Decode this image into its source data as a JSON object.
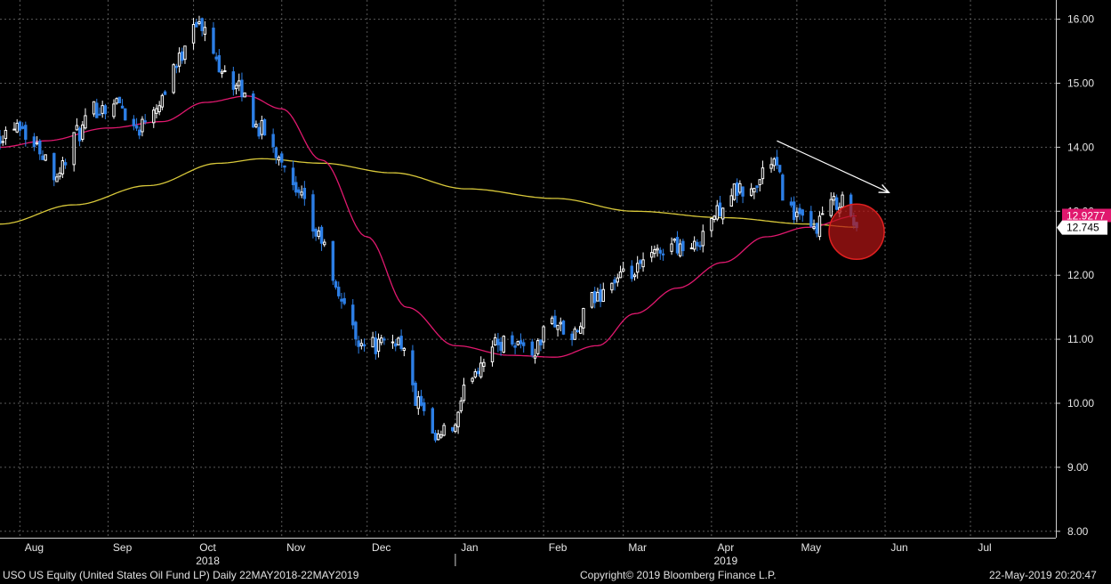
{
  "chart_data": {
    "type": "candlestick",
    "security": "USO US Equity",
    "x_range": [
      "2018-07-25",
      "2019-07-31"
    ],
    "ylim": [
      7.9,
      16.3
    ],
    "y_ticks": [
      "16.00",
      "15.00",
      "14.00",
      "13.00",
      "12.00",
      "11.00",
      "10.00",
      "9.00",
      "8.00"
    ],
    "month_labels": [
      {
        "label": "Aug",
        "date": "2018-08-06"
      },
      {
        "label": "Sep",
        "date": "2018-09-06"
      },
      {
        "label": "Oct",
        "date": "2018-10-06"
      },
      {
        "label": "Nov",
        "date": "2018-11-06"
      },
      {
        "label": "Dec",
        "date": "2018-12-06"
      },
      {
        "label": "Jan",
        "date": "2019-01-06"
      },
      {
        "label": "Feb",
        "date": "2019-02-06"
      },
      {
        "label": "Mar",
        "date": "2019-03-06"
      },
      {
        "label": "Apr",
        "date": "2019-04-06"
      },
      {
        "label": "May",
        "date": "2019-05-06"
      },
      {
        "label": "Jun",
        "date": "2019-06-06"
      },
      {
        "label": "Jul",
        "date": "2019-07-06"
      }
    ],
    "year_labels": [
      {
        "label": "2018",
        "date": "2018-10-06"
      },
      {
        "label": "2019",
        "date": "2019-04-06"
      }
    ],
    "price_anchors": [
      [
        "2018-07-25",
        14.2
      ],
      [
        "2018-07-31",
        14.4
      ],
      [
        "2018-08-07",
        14.0
      ],
      [
        "2018-08-14",
        13.6
      ],
      [
        "2018-08-21",
        14.2
      ],
      [
        "2018-08-28",
        14.6
      ],
      [
        "2018-09-04",
        14.7
      ],
      [
        "2018-09-11",
        14.3
      ],
      [
        "2018-09-18",
        14.7
      ],
      [
        "2018-09-25",
        15.3
      ],
      [
        "2018-10-01",
        16.0
      ],
      [
        "2018-10-05",
        15.8
      ],
      [
        "2018-10-10",
        15.3
      ],
      [
        "2018-10-17",
        14.9
      ],
      [
        "2018-10-24",
        14.3
      ],
      [
        "2018-10-31",
        13.9
      ],
      [
        "2018-11-07",
        13.2
      ],
      [
        "2018-11-14",
        12.6
      ],
      [
        "2018-11-21",
        11.7
      ],
      [
        "2018-11-28",
        11.0
      ],
      [
        "2018-12-05",
        10.9
      ],
      [
        "2018-12-12",
        11.0
      ],
      [
        "2018-12-19",
        10.0
      ],
      [
        "2018-12-24",
        9.4
      ],
      [
        "2018-12-31",
        9.6
      ],
      [
        "2019-01-07",
        10.5
      ],
      [
        "2019-01-14",
        10.9
      ],
      [
        "2019-01-21",
        11.0
      ],
      [
        "2019-01-28",
        10.8
      ],
      [
        "2019-02-04",
        11.3
      ],
      [
        "2019-02-11",
        11.0
      ],
      [
        "2019-02-18",
        11.6
      ],
      [
        "2019-02-25",
        11.9
      ],
      [
        "2019-03-04",
        12.0
      ],
      [
        "2019-03-11",
        12.3
      ],
      [
        "2019-03-18",
        12.5
      ],
      [
        "2019-03-25",
        12.4
      ],
      [
        "2019-04-01",
        12.9
      ],
      [
        "2019-04-08",
        13.3
      ],
      [
        "2019-04-15",
        13.3
      ],
      [
        "2019-04-22",
        13.8
      ],
      [
        "2019-04-29",
        13.0
      ],
      [
        "2019-05-06",
        12.7
      ],
      [
        "2019-05-13",
        13.1
      ],
      [
        "2019-05-17",
        13.2
      ],
      [
        "2019-05-22",
        12.745
      ]
    ],
    "ma_short": [
      [
        "2018-07-25",
        14.0
      ],
      [
        "2018-08-10",
        14.1
      ],
      [
        "2018-09-01",
        14.3
      ],
      [
        "2018-09-20",
        14.4
      ],
      [
        "2018-10-05",
        14.7
      ],
      [
        "2018-10-20",
        14.8
      ],
      [
        "2018-11-01",
        14.6
      ],
      [
        "2018-11-15",
        13.8
      ],
      [
        "2018-12-01",
        12.6
      ],
      [
        "2018-12-15",
        11.5
      ],
      [
        "2019-01-01",
        10.9
      ],
      [
        "2019-01-20",
        10.75
      ],
      [
        "2019-02-05",
        10.72
      ],
      [
        "2019-02-20",
        10.9
      ],
      [
        "2019-03-05",
        11.4
      ],
      [
        "2019-03-20",
        11.8
      ],
      [
        "2019-04-05",
        12.2
      ],
      [
        "2019-04-20",
        12.6
      ],
      [
        "2019-05-05",
        12.75
      ],
      [
        "2019-05-22",
        12.9277
      ]
    ],
    "ma_long": [
      [
        "2018-07-25",
        12.8
      ],
      [
        "2018-08-20",
        13.1
      ],
      [
        "2018-09-15",
        13.4
      ],
      [
        "2018-10-10",
        13.75
      ],
      [
        "2018-10-25",
        13.82
      ],
      [
        "2018-11-15",
        13.75
      ],
      [
        "2018-12-10",
        13.6
      ],
      [
        "2019-01-05",
        13.35
      ],
      [
        "2019-02-05",
        13.2
      ],
      [
        "2019-03-05",
        13.0
      ],
      [
        "2019-04-05",
        12.9
      ],
      [
        "2019-05-05",
        12.8
      ],
      [
        "2019-05-22",
        12.75
      ]
    ],
    "last_price": 12.745,
    "last_price_label": "12.745",
    "ma_short_last": 12.9277,
    "ma_short_last_label": "12.9277",
    "annotations": [
      {
        "type": "arrow",
        "color": "#ffffff",
        "from": [
          "2019-04-24",
          14.1
        ],
        "to": [
          "2019-06-02",
          13.3
        ]
      },
      {
        "type": "circle",
        "color": "#b31515",
        "center": [
          "2019-05-22",
          12.68
        ]
      }
    ],
    "colors": {
      "background": "#000000",
      "grid": "#5a5a5a",
      "up_candle": "#ffffff",
      "down_candle": "#2d7fe6",
      "ma_short": "#e0186e",
      "ma_long": "#d8c83a",
      "ma_tag": "#e0186e",
      "price_tag": "#ffffff"
    }
  },
  "footer": {
    "left": "USO US Equity (United States Oil Fund LP)  Daily 22MAY2018-22MAY2019",
    "center": "Copyright© 2019 Bloomberg Finance L.P.",
    "right": "22-May-2019 20:20:47"
  }
}
